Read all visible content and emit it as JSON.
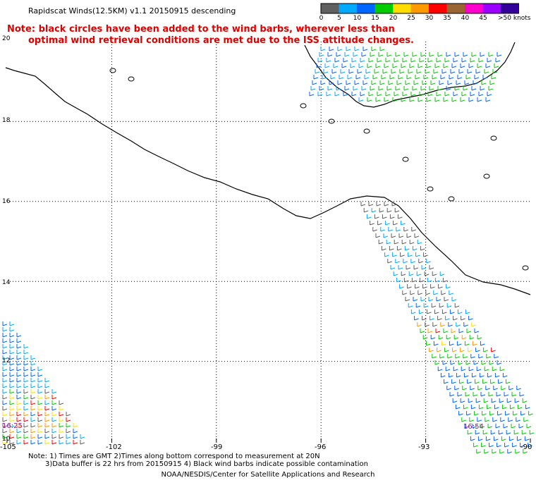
{
  "header": {
    "title": "Rapidscat Winds(12.5KM) v1.1 20150915 descending"
  },
  "note": {
    "line1": "Note: black circles have been added to the wind barbs, wherever less than",
    "line2": "optimal wind retrieval conditions are met due to the ISS attitude changes."
  },
  "legend": {
    "labels": [
      "0",
      "5",
      "10",
      "15",
      "20",
      "25",
      "30",
      "35",
      "40",
      "45",
      ">50 knots"
    ],
    "colors": [
      "#606060",
      "#00aaff",
      "#0066ff",
      "#00cc00",
      "#ffdd00",
      "#ff9900",
      "#ff0000",
      "#996633",
      "#ff00cc",
      "#9900ff",
      "#330099"
    ]
  },
  "map": {
    "lat_labels": [
      "20",
      "18",
      "16",
      "14",
      "12",
      "10"
    ],
    "lon_labels": [
      "-105",
      "-102",
      "-99",
      "-96",
      "-93",
      "-90"
    ],
    "lon_range": [
      -105,
      -90
    ],
    "lat_range": [
      10,
      20
    ],
    "pass_times": [
      "16:25",
      "16:54"
    ]
  },
  "footer": {
    "note_line1": "Note: 1) Times are GMT 2)Times along bottom correspond to measurement at 20N",
    "note_line2": "3)Data buffer is 22 hrs from 20150915 4) Black wind barbs indicate possible contamination",
    "credit": "NOAA/NESDIS/Center for Satellite Applications and Research"
  }
}
